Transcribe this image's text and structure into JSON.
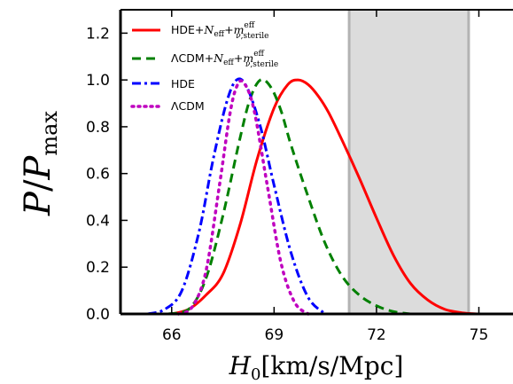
{
  "chart_data": {
    "type": "line",
    "xlabel": "H_0 [km/s/Mpc]",
    "ylabel": "P/P_max",
    "xlim": [
      64.5,
      76
    ],
    "ylim": [
      0,
      1.3
    ],
    "xticks": [
      66,
      69,
      72,
      75
    ],
    "yticks": [
      0.0,
      0.2,
      0.4,
      0.6,
      0.8,
      1.0,
      1.2
    ],
    "xtick_labels": [
      "66",
      "69",
      "72",
      "75"
    ],
    "ytick_labels": [
      "0.0",
      "0.2",
      "0.4",
      "0.6",
      "0.8",
      "1.0",
      "1.2"
    ],
    "grid": false,
    "legend_position": "top-left",
    "shaded_band": {
      "x_range": [
        71.2,
        74.7
      ],
      "color": "#dcdcdc",
      "edge_color": "#b3b3b3"
    },
    "series": [
      {
        "name": "HDE+N_eff+m_ν,sterile^eff",
        "color": "#ff0000",
        "style": "solid",
        "x": [
          66.0,
          66.5,
          67.0,
          67.5,
          68.0,
          68.5,
          69.0,
          69.4,
          69.7,
          70.0,
          70.3,
          70.6,
          71.0,
          71.5,
          72.0,
          72.5,
          73.0,
          73.5,
          74.0,
          74.5,
          75.0
        ],
        "y": [
          0.0,
          0.02,
          0.08,
          0.17,
          0.38,
          0.66,
          0.88,
          0.98,
          1.0,
          0.98,
          0.93,
          0.86,
          0.74,
          0.58,
          0.41,
          0.25,
          0.13,
          0.06,
          0.02,
          0.005,
          0.0
        ]
      },
      {
        "name": "ΛCDM+N_eff+m_ν,sterile^eff",
        "color": "#008000",
        "style": "dashed",
        "x": [
          65.9,
          66.5,
          67.0,
          67.5,
          68.0,
          68.3,
          68.6,
          68.9,
          69.2,
          69.5,
          70.0,
          70.5,
          71.0,
          71.5,
          72.0,
          72.5,
          73.0
        ],
        "y": [
          0.0,
          0.02,
          0.15,
          0.42,
          0.75,
          0.92,
          1.0,
          0.97,
          0.87,
          0.72,
          0.5,
          0.3,
          0.16,
          0.08,
          0.035,
          0.01,
          0.0
        ]
      },
      {
        "name": "HDE",
        "color": "#0000ff",
        "style": "dashdot",
        "x": [
          65.3,
          65.8,
          66.3,
          66.8,
          67.2,
          67.6,
          67.9,
          68.2,
          68.6,
          69.0,
          69.5,
          70.0,
          70.5
        ],
        "y": [
          0.0,
          0.02,
          0.1,
          0.35,
          0.65,
          0.9,
          1.0,
          0.97,
          0.8,
          0.55,
          0.26,
          0.07,
          0.0
        ]
      },
      {
        "name": "ΛCDM",
        "color": "#bf00bf",
        "style": "dotted",
        "x": [
          66.2,
          66.6,
          67.0,
          67.4,
          67.7,
          67.9,
          68.1,
          68.4,
          68.8,
          69.2,
          69.6,
          70.0
        ],
        "y": [
          0.0,
          0.03,
          0.18,
          0.55,
          0.85,
          0.97,
          0.99,
          0.88,
          0.55,
          0.22,
          0.05,
          0.0
        ]
      }
    ]
  }
}
